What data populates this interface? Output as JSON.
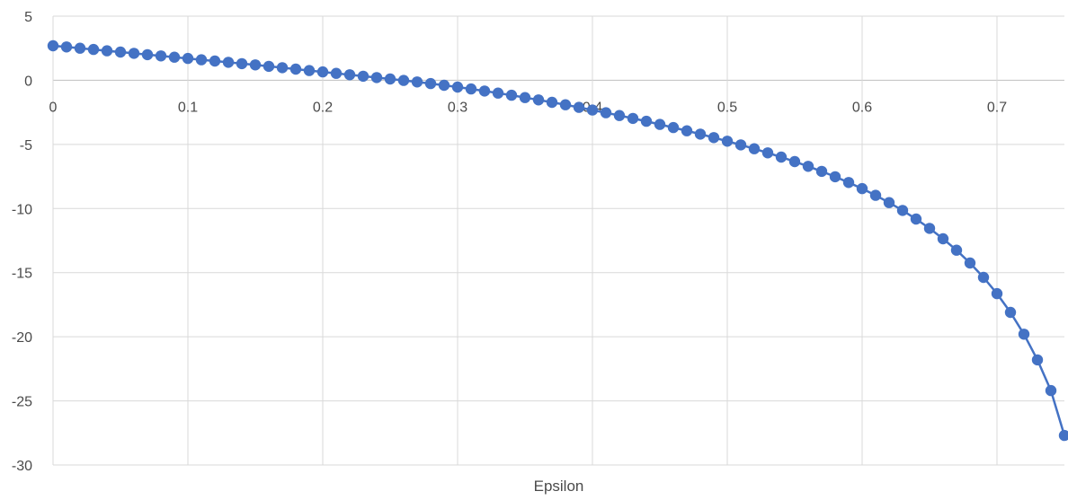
{
  "chart_data": {
    "type": "line",
    "title": "",
    "xlabel": "Epsilon",
    "ylabel": "",
    "xlim": [
      0,
      0.75
    ],
    "ylim": [
      -30,
      5
    ],
    "x_ticks": [
      "0",
      "0.1",
      "0.2",
      "0.3",
      "0.4",
      "0.5",
      "0.6",
      "0.7"
    ],
    "y_ticks": [
      "5",
      "0",
      "-5",
      "-10",
      "-15",
      "-20",
      "-25",
      "-30"
    ],
    "grid": true,
    "markers": true,
    "line_color": "#4472C4",
    "series": [
      {
        "x": [
          0,
          0.01,
          0.02,
          0.03,
          0.04,
          0.05,
          0.06,
          0.07,
          0.08,
          0.09,
          0.1,
          0.11,
          0.12,
          0.13,
          0.14,
          0.15,
          0.16,
          0.17,
          0.18,
          0.19,
          0.2,
          0.21,
          0.22,
          0.23,
          0.24,
          0.25,
          0.26,
          0.27,
          0.28,
          0.29,
          0.3,
          0.31,
          0.32,
          0.33,
          0.34,
          0.35,
          0.36,
          0.37,
          0.38,
          0.39,
          0.4,
          0.41,
          0.42,
          0.43,
          0.44,
          0.45,
          0.46,
          0.47,
          0.48,
          0.49,
          0.5,
          0.51,
          0.52,
          0.53,
          0.54,
          0.55,
          0.56,
          0.57,
          0.58,
          0.59,
          0.6,
          0.61,
          0.62,
          0.63,
          0.64,
          0.65,
          0.66,
          0.67,
          0.68,
          0.69,
          0.7,
          0.71,
          0.72,
          0.73,
          0.74,
          0.75
        ],
        "y": [
          2.69,
          2.6,
          2.5,
          2.4,
          2.3,
          2.2,
          2.1,
          2.0,
          1.9,
          1.8,
          1.7,
          1.6,
          1.5,
          1.4,
          1.3,
          1.2,
          1.09,
          0.98,
          0.87,
          0.76,
          0.65,
          0.54,
          0.43,
          0.32,
          0.21,
          0.1,
          -0.01,
          -0.13,
          -0.26,
          -0.39,
          -0.53,
          -0.68,
          -0.84,
          -1.0,
          -1.17,
          -1.35,
          -1.53,
          -1.72,
          -1.91,
          -2.11,
          -2.32,
          -2.53,
          -2.75,
          -2.97,
          -3.2,
          -3.44,
          -3.69,
          -3.94,
          -4.2,
          -4.47,
          -4.75,
          -5.04,
          -5.34,
          -5.66,
          -5.99,
          -6.34,
          -6.71,
          -7.1,
          -7.52,
          -7.97,
          -8.45,
          -8.97,
          -9.54,
          -10.15,
          -10.82,
          -11.55,
          -12.36,
          -13.25,
          -14.25,
          -15.37,
          -16.64,
          -18.1,
          -19.8,
          -21.8,
          -24.2,
          -27.7
        ]
      }
    ]
  }
}
